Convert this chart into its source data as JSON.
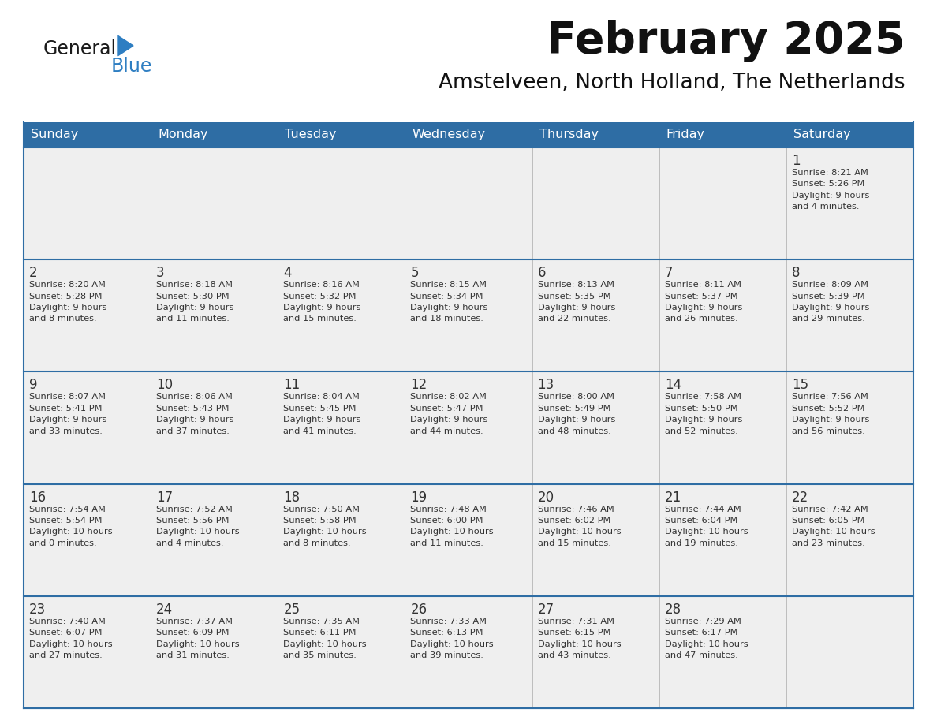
{
  "title": "February 2025",
  "subtitle": "Amstelveen, North Holland, The Netherlands",
  "header_color": "#2E6DA4",
  "header_text_color": "#FFFFFF",
  "cell_bg_color": "#EFEFEF",
  "border_color": "#2E6DA4",
  "text_color": "#333333",
  "day_headers": [
    "Sunday",
    "Monday",
    "Tuesday",
    "Wednesday",
    "Thursday",
    "Friday",
    "Saturday"
  ],
  "weeks": [
    [
      {
        "day": "",
        "info": ""
      },
      {
        "day": "",
        "info": ""
      },
      {
        "day": "",
        "info": ""
      },
      {
        "day": "",
        "info": ""
      },
      {
        "day": "",
        "info": ""
      },
      {
        "day": "",
        "info": ""
      },
      {
        "day": "1",
        "info": "Sunrise: 8:21 AM\nSunset: 5:26 PM\nDaylight: 9 hours\nand 4 minutes."
      }
    ],
    [
      {
        "day": "2",
        "info": "Sunrise: 8:20 AM\nSunset: 5:28 PM\nDaylight: 9 hours\nand 8 minutes."
      },
      {
        "day": "3",
        "info": "Sunrise: 8:18 AM\nSunset: 5:30 PM\nDaylight: 9 hours\nand 11 minutes."
      },
      {
        "day": "4",
        "info": "Sunrise: 8:16 AM\nSunset: 5:32 PM\nDaylight: 9 hours\nand 15 minutes."
      },
      {
        "day": "5",
        "info": "Sunrise: 8:15 AM\nSunset: 5:34 PM\nDaylight: 9 hours\nand 18 minutes."
      },
      {
        "day": "6",
        "info": "Sunrise: 8:13 AM\nSunset: 5:35 PM\nDaylight: 9 hours\nand 22 minutes."
      },
      {
        "day": "7",
        "info": "Sunrise: 8:11 AM\nSunset: 5:37 PM\nDaylight: 9 hours\nand 26 minutes."
      },
      {
        "day": "8",
        "info": "Sunrise: 8:09 AM\nSunset: 5:39 PM\nDaylight: 9 hours\nand 29 minutes."
      }
    ],
    [
      {
        "day": "9",
        "info": "Sunrise: 8:07 AM\nSunset: 5:41 PM\nDaylight: 9 hours\nand 33 minutes."
      },
      {
        "day": "10",
        "info": "Sunrise: 8:06 AM\nSunset: 5:43 PM\nDaylight: 9 hours\nand 37 minutes."
      },
      {
        "day": "11",
        "info": "Sunrise: 8:04 AM\nSunset: 5:45 PM\nDaylight: 9 hours\nand 41 minutes."
      },
      {
        "day": "12",
        "info": "Sunrise: 8:02 AM\nSunset: 5:47 PM\nDaylight: 9 hours\nand 44 minutes."
      },
      {
        "day": "13",
        "info": "Sunrise: 8:00 AM\nSunset: 5:49 PM\nDaylight: 9 hours\nand 48 minutes."
      },
      {
        "day": "14",
        "info": "Sunrise: 7:58 AM\nSunset: 5:50 PM\nDaylight: 9 hours\nand 52 minutes."
      },
      {
        "day": "15",
        "info": "Sunrise: 7:56 AM\nSunset: 5:52 PM\nDaylight: 9 hours\nand 56 minutes."
      }
    ],
    [
      {
        "day": "16",
        "info": "Sunrise: 7:54 AM\nSunset: 5:54 PM\nDaylight: 10 hours\nand 0 minutes."
      },
      {
        "day": "17",
        "info": "Sunrise: 7:52 AM\nSunset: 5:56 PM\nDaylight: 10 hours\nand 4 minutes."
      },
      {
        "day": "18",
        "info": "Sunrise: 7:50 AM\nSunset: 5:58 PM\nDaylight: 10 hours\nand 8 minutes."
      },
      {
        "day": "19",
        "info": "Sunrise: 7:48 AM\nSunset: 6:00 PM\nDaylight: 10 hours\nand 11 minutes."
      },
      {
        "day": "20",
        "info": "Sunrise: 7:46 AM\nSunset: 6:02 PM\nDaylight: 10 hours\nand 15 minutes."
      },
      {
        "day": "21",
        "info": "Sunrise: 7:44 AM\nSunset: 6:04 PM\nDaylight: 10 hours\nand 19 minutes."
      },
      {
        "day": "22",
        "info": "Sunrise: 7:42 AM\nSunset: 6:05 PM\nDaylight: 10 hours\nand 23 minutes."
      }
    ],
    [
      {
        "day": "23",
        "info": "Sunrise: 7:40 AM\nSunset: 6:07 PM\nDaylight: 10 hours\nand 27 minutes."
      },
      {
        "day": "24",
        "info": "Sunrise: 7:37 AM\nSunset: 6:09 PM\nDaylight: 10 hours\nand 31 minutes."
      },
      {
        "day": "25",
        "info": "Sunrise: 7:35 AM\nSunset: 6:11 PM\nDaylight: 10 hours\nand 35 minutes."
      },
      {
        "day": "26",
        "info": "Sunrise: 7:33 AM\nSunset: 6:13 PM\nDaylight: 10 hours\nand 39 minutes."
      },
      {
        "day": "27",
        "info": "Sunrise: 7:31 AM\nSunset: 6:15 PM\nDaylight: 10 hours\nand 43 minutes."
      },
      {
        "day": "28",
        "info": "Sunrise: 7:29 AM\nSunset: 6:17 PM\nDaylight: 10 hours\nand 47 minutes."
      },
      {
        "day": "",
        "info": ""
      }
    ]
  ],
  "logo_general_color": "#1a1a1a",
  "logo_blue_color": "#2E7EC2",
  "figsize": [
    11.88,
    9.18
  ],
  "dpi": 100
}
